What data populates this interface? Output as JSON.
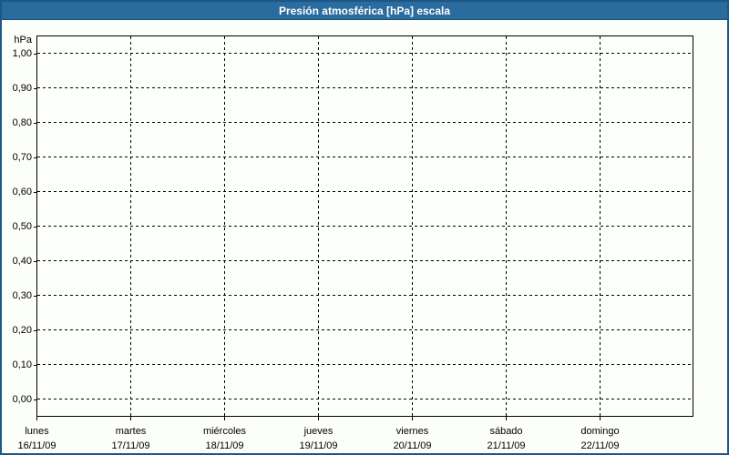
{
  "title_bar": {
    "title": "Presión atmosférica [hPa] escala"
  },
  "chart_data": {
    "type": "line",
    "title": "Presión atmosférica [hPa] escala",
    "y_unit_label": "hPa",
    "ylim": [
      0.0,
      1.0
    ],
    "y_tick_step": 0.1,
    "y_ticks": [
      "1,00",
      "0,90",
      "0,80",
      "0,70",
      "0,60",
      "0,50",
      "0,40",
      "0,30",
      "0,20",
      "0,10",
      "0,00"
    ],
    "x_days": [
      {
        "name": "lunes",
        "date": "16/11/09"
      },
      {
        "name": "martes",
        "date": "17/11/09"
      },
      {
        "name": "miércoles",
        "date": "18/11/09"
      },
      {
        "name": "jueves",
        "date": "19/11/09"
      },
      {
        "name": "viernes",
        "date": "20/11/09"
      },
      {
        "name": "sábado",
        "date": "21/11/09"
      },
      {
        "name": "domingo",
        "date": "22/11/09"
      }
    ],
    "series": [],
    "grid": {
      "horizontal": "dashed",
      "vertical": "dashed"
    },
    "legend": "none"
  },
  "colors": {
    "title_bar_bg": "#2b6c9e",
    "frame_border": "#1d5786",
    "title_text": "#ffffff",
    "plot_border": "#000000",
    "gridline": "#000000",
    "label_text": "#000000",
    "chart_bg": "#fdfffc"
  }
}
